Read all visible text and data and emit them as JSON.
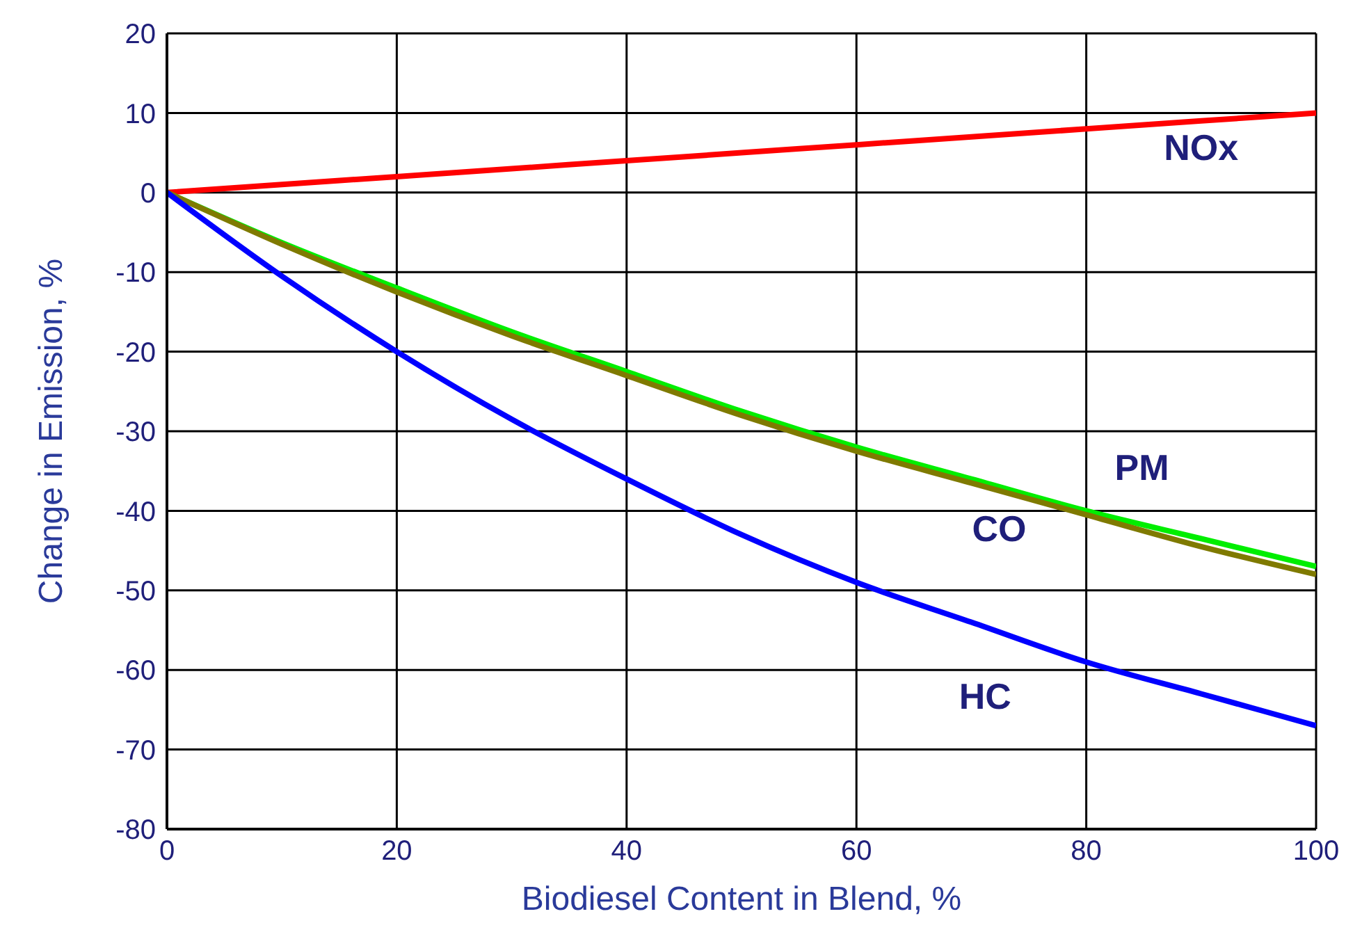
{
  "chart_data": {
    "type": "line",
    "xlabel": "Biodiesel Content in Blend, %",
    "ylabel": "Change in Emission, %",
    "x": [
      0,
      10,
      20,
      30,
      40,
      50,
      60,
      70,
      80,
      90,
      100
    ],
    "series": [
      {
        "name": "NOx",
        "color": "#ff0000",
        "values": [
          0,
          1,
          2,
          3,
          4,
          5,
          6,
          7,
          8,
          9,
          10
        ]
      },
      {
        "name": "PM",
        "color": "#00ee00",
        "values": [
          0,
          -6.3,
          -12,
          -17.5,
          -22.5,
          -27.5,
          -32,
          -36,
          -40,
          -43.5,
          -47
        ]
      },
      {
        "name": "CO",
        "color": "#7f7a00",
        "values": [
          0,
          -6.5,
          -12.5,
          -18,
          -23,
          -28,
          -32.5,
          -36.5,
          -40.5,
          -44.5,
          -48
        ]
      },
      {
        "name": "HC",
        "color": "#0000ff",
        "values": [
          0,
          -10.5,
          -20,
          -28.5,
          -36,
          -43,
          -49,
          -54,
          -59,
          -63,
          -67
        ]
      }
    ],
    "xlim": [
      0,
      100
    ],
    "xticks": [
      0,
      20,
      40,
      60,
      80,
      100
    ],
    "ylim": [
      -80,
      20
    ],
    "yticks": [
      -80,
      -70,
      -60,
      -50,
      -40,
      -30,
      -20,
      -10,
      0,
      10,
      20
    ],
    "grid": true,
    "legend": false,
    "marker": "none",
    "line_style": "solid"
  }
}
